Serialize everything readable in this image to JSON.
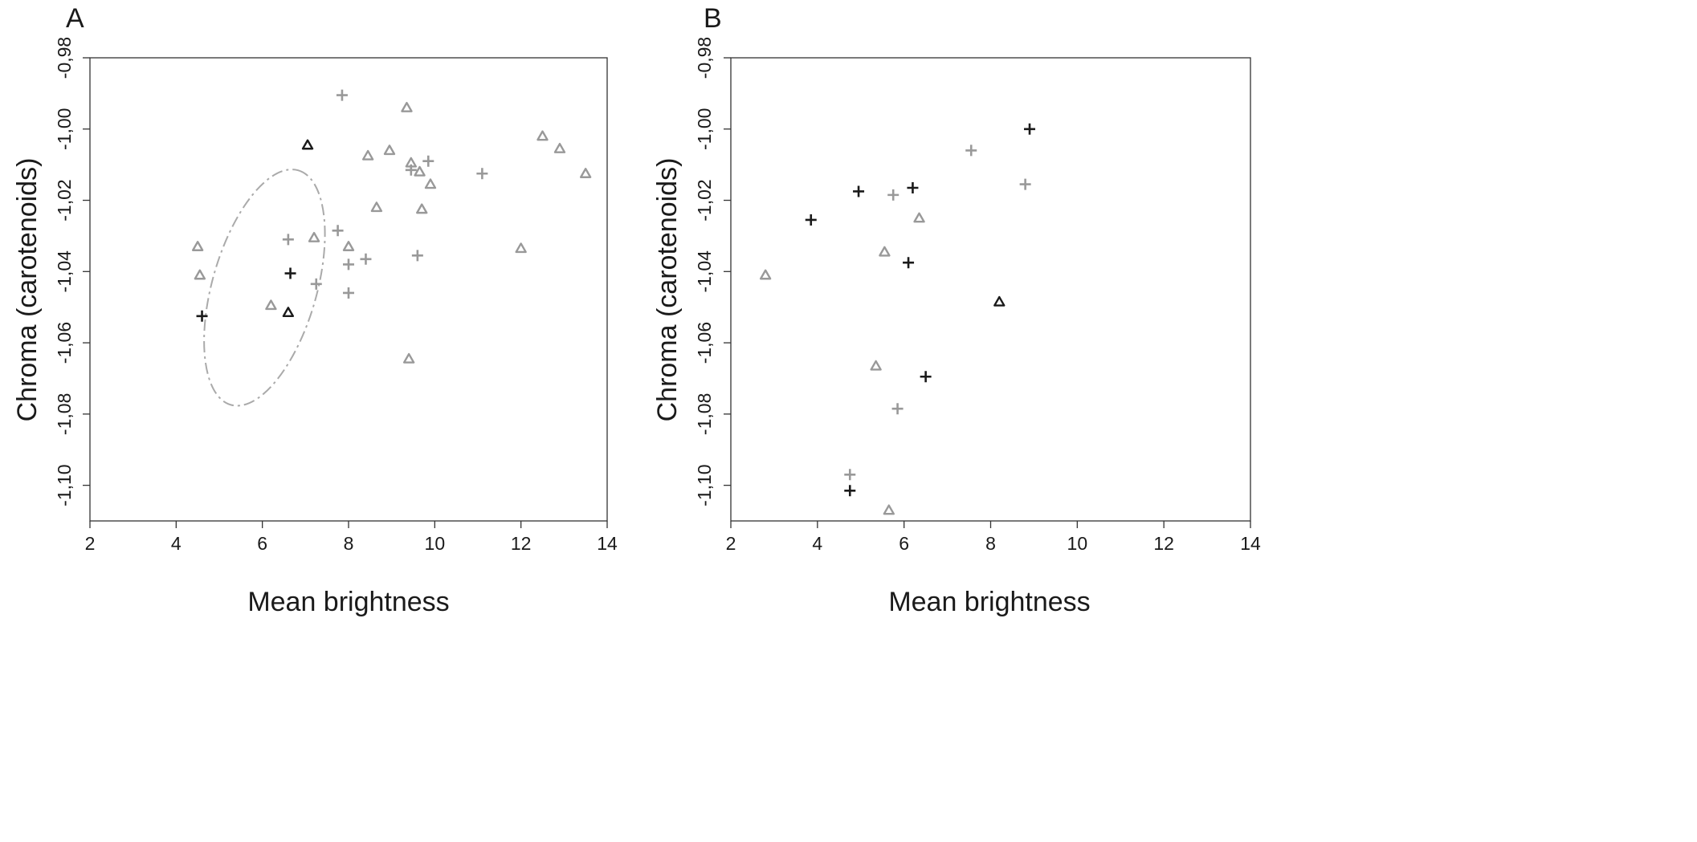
{
  "colors": {
    "black": "#1a1a1a",
    "grey": "#999999",
    "ellipse": "#aaaaaa",
    "axis": "#333333"
  },
  "chart_data": [
    {
      "type": "scatter",
      "panel_label": "A",
      "xlabel": "Mean brightness",
      "ylabel": "Chroma (carotenoids)",
      "xlim": [
        2,
        14
      ],
      "ylim": [
        -1.11,
        -0.98
      ],
      "xticks": [
        "2",
        "4",
        "6",
        "8",
        "10",
        "12",
        "14"
      ],
      "yticks": [
        "-1,10",
        "-1,08",
        "-1,06",
        "-1,04",
        "-1,02",
        "-1,00",
        "-0,98"
      ],
      "grid": false,
      "ellipse": {
        "cx": 6.05,
        "cy": -1.0445,
        "rx": 2.05,
        "ry": 0.02,
        "rotation_deg": 74
      },
      "points": [
        {
          "x": 7.85,
          "y": -0.9905,
          "marker": "plus",
          "shade": "grey"
        },
        {
          "x": 9.35,
          "y": -0.994,
          "marker": "triangle",
          "shade": "grey"
        },
        {
          "x": 7.05,
          "y": -1.0045,
          "marker": "triangle",
          "shade": "black"
        },
        {
          "x": 8.45,
          "y": -1.0075,
          "marker": "triangle",
          "shade": "grey"
        },
        {
          "x": 8.95,
          "y": -1.006,
          "marker": "triangle",
          "shade": "grey"
        },
        {
          "x": 9.45,
          "y": -1.0095,
          "marker": "triangle",
          "shade": "grey"
        },
        {
          "x": 9.45,
          "y": -1.0115,
          "marker": "plus",
          "shade": "grey"
        },
        {
          "x": 9.85,
          "y": -1.009,
          "marker": "plus",
          "shade": "grey"
        },
        {
          "x": 9.65,
          "y": -1.012,
          "marker": "triangle",
          "shade": "grey"
        },
        {
          "x": 9.9,
          "y": -1.0155,
          "marker": "triangle",
          "shade": "grey"
        },
        {
          "x": 11.1,
          "y": -1.0125,
          "marker": "plus",
          "shade": "grey"
        },
        {
          "x": 12.5,
          "y": -1.002,
          "marker": "triangle",
          "shade": "grey"
        },
        {
          "x": 12.9,
          "y": -1.0055,
          "marker": "triangle",
          "shade": "grey"
        },
        {
          "x": 13.5,
          "y": -1.0125,
          "marker": "triangle",
          "shade": "grey"
        },
        {
          "x": 8.65,
          "y": -1.022,
          "marker": "triangle",
          "shade": "grey"
        },
        {
          "x": 9.7,
          "y": -1.0225,
          "marker": "triangle",
          "shade": "grey"
        },
        {
          "x": 7.75,
          "y": -1.0285,
          "marker": "plus",
          "shade": "grey"
        },
        {
          "x": 7.2,
          "y": -1.0305,
          "marker": "triangle",
          "shade": "grey"
        },
        {
          "x": 6.6,
          "y": -1.031,
          "marker": "plus",
          "shade": "grey"
        },
        {
          "x": 8.0,
          "y": -1.033,
          "marker": "triangle",
          "shade": "grey"
        },
        {
          "x": 8.4,
          "y": -1.0365,
          "marker": "plus",
          "shade": "grey"
        },
        {
          "x": 8.0,
          "y": -1.038,
          "marker": "plus",
          "shade": "grey"
        },
        {
          "x": 9.6,
          "y": -1.0355,
          "marker": "plus",
          "shade": "grey"
        },
        {
          "x": 12.0,
          "y": -1.0335,
          "marker": "triangle",
          "shade": "grey"
        },
        {
          "x": 4.5,
          "y": -1.033,
          "marker": "triangle",
          "shade": "grey"
        },
        {
          "x": 4.55,
          "y": -1.041,
          "marker": "triangle",
          "shade": "grey"
        },
        {
          "x": 6.65,
          "y": -1.0405,
          "marker": "plus",
          "shade": "black"
        },
        {
          "x": 7.25,
          "y": -1.0435,
          "marker": "plus",
          "shade": "grey"
        },
        {
          "x": 8.0,
          "y": -1.046,
          "marker": "plus",
          "shade": "grey"
        },
        {
          "x": 6.2,
          "y": -1.0495,
          "marker": "triangle",
          "shade": "grey"
        },
        {
          "x": 6.6,
          "y": -1.0515,
          "marker": "triangle",
          "shade": "black"
        },
        {
          "x": 4.6,
          "y": -1.0525,
          "marker": "plus",
          "shade": "black"
        },
        {
          "x": 9.4,
          "y": -1.0645,
          "marker": "triangle",
          "shade": "grey"
        }
      ]
    },
    {
      "type": "scatter",
      "panel_label": "B",
      "xlabel": "Mean brightness",
      "ylabel": "Chroma (carotenoids)",
      "xlim": [
        2,
        14
      ],
      "ylim": [
        -1.11,
        -0.98
      ],
      "xticks": [
        "2",
        "4",
        "6",
        "8",
        "10",
        "12",
        "14"
      ],
      "yticks": [
        "-1,10",
        "-1,08",
        "-1,06",
        "-1,04",
        "-1,02",
        "-1,00",
        "-0,98"
      ],
      "grid": false,
      "points": [
        {
          "x": 8.9,
          "y": -1.0,
          "marker": "plus",
          "shade": "black"
        },
        {
          "x": 7.55,
          "y": -1.006,
          "marker": "plus",
          "shade": "grey"
        },
        {
          "x": 8.8,
          "y": -1.0155,
          "marker": "plus",
          "shade": "grey"
        },
        {
          "x": 4.95,
          "y": -1.0175,
          "marker": "plus",
          "shade": "black"
        },
        {
          "x": 6.2,
          "y": -1.0165,
          "marker": "plus",
          "shade": "black"
        },
        {
          "x": 5.75,
          "y": -1.0185,
          "marker": "plus",
          "shade": "grey"
        },
        {
          "x": 3.85,
          "y": -1.0255,
          "marker": "plus",
          "shade": "black"
        },
        {
          "x": 6.35,
          "y": -1.025,
          "marker": "triangle",
          "shade": "grey"
        },
        {
          "x": 5.55,
          "y": -1.0345,
          "marker": "triangle",
          "shade": "grey"
        },
        {
          "x": 6.1,
          "y": -1.0375,
          "marker": "plus",
          "shade": "black"
        },
        {
          "x": 2.8,
          "y": -1.041,
          "marker": "triangle",
          "shade": "grey"
        },
        {
          "x": 8.2,
          "y": -1.0485,
          "marker": "triangle",
          "shade": "black"
        },
        {
          "x": 5.35,
          "y": -1.0665,
          "marker": "triangle",
          "shade": "grey"
        },
        {
          "x": 6.5,
          "y": -1.0695,
          "marker": "plus",
          "shade": "black"
        },
        {
          "x": 5.85,
          "y": -1.0785,
          "marker": "plus",
          "shade": "grey"
        },
        {
          "x": 4.75,
          "y": -1.097,
          "marker": "plus",
          "shade": "grey"
        },
        {
          "x": 4.75,
          "y": -1.1015,
          "marker": "plus",
          "shade": "black"
        },
        {
          "x": 5.65,
          "y": -1.107,
          "marker": "triangle",
          "shade": "grey"
        }
      ]
    }
  ]
}
